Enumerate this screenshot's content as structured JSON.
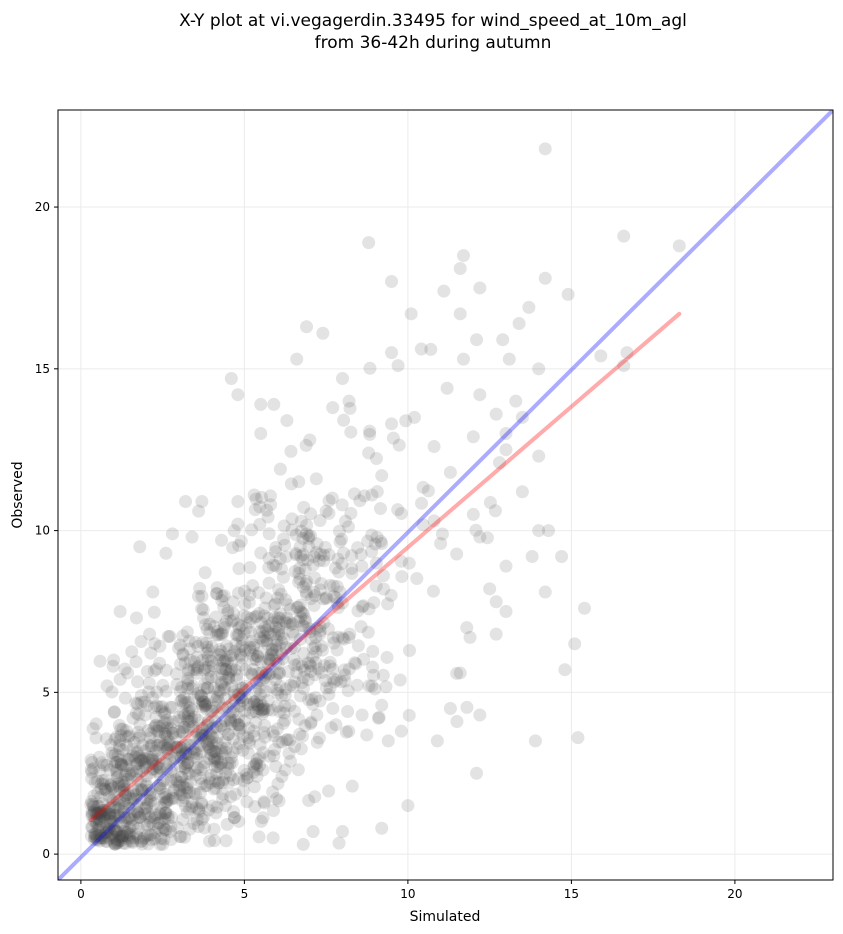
{
  "chart_data": {
    "type": "scatter",
    "title_line1": "X-Y plot at vi.vegagerdin.33495 for wind_speed_at_10m_agl",
    "title_line2": "from 36-42h during autumn",
    "xlabel": "Simulated",
    "ylabel": "Observed",
    "xlim": [
      -0.7,
      23
    ],
    "ylim": [
      -0.8,
      23
    ],
    "xticks": [
      0,
      5,
      10,
      15,
      20
    ],
    "yticks": [
      0,
      5,
      10,
      15,
      20
    ],
    "grid": true,
    "point_color": "#404040",
    "point_opacity": 0.15,
    "identity_line": {
      "color": "#0000ff",
      "opacity": 0.33,
      "from": [
        -0.7,
        -0.8
      ],
      "to": [
        23,
        23
      ]
    },
    "fit_line": {
      "color": "#ff0000",
      "opacity": 0.33,
      "from": [
        0.3,
        1.05
      ],
      "to": [
        18.3,
        16.7
      ]
    },
    "cloud": {
      "seed": 33495,
      "count": 1400,
      "slope": 0.87,
      "intercept": 0.8,
      "noise": 2.2,
      "x_mode": 4.0,
      "x_spread": 2.3
    },
    "points": [
      [
        14.2,
        21.8
      ],
      [
        8.8,
        18.9
      ],
      [
        16.6,
        19.1
      ],
      [
        18.3,
        18.8
      ],
      [
        11.7,
        18.5
      ],
      [
        11.6,
        18.1
      ],
      [
        9.5,
        17.7
      ],
      [
        14.2,
        17.8
      ],
      [
        14.9,
        17.3
      ],
      [
        12.2,
        17.5
      ],
      [
        11.1,
        17.4
      ],
      [
        13.7,
        16.9
      ],
      [
        10.1,
        16.7
      ],
      [
        11.6,
        16.7
      ],
      [
        6.9,
        16.3
      ],
      [
        7.4,
        16.1
      ],
      [
        13.4,
        16.4
      ],
      [
        12.9,
        15.9
      ],
      [
        12.1,
        15.9
      ],
      [
        10.7,
        15.6
      ],
      [
        9.5,
        15.5
      ],
      [
        13.1,
        15.3
      ],
      [
        15.9,
        15.4
      ],
      [
        16.7,
        15.5
      ],
      [
        16.6,
        15.1
      ],
      [
        6.6,
        15.3
      ],
      [
        11.7,
        15.3
      ],
      [
        14.0,
        15.0
      ],
      [
        9.7,
        15.1
      ],
      [
        8.0,
        14.7
      ],
      [
        4.6,
        14.7
      ],
      [
        11.2,
        14.4
      ],
      [
        12.2,
        14.2
      ],
      [
        4.8,
        14.2
      ],
      [
        8.2,
        14.0
      ],
      [
        13.3,
        14.0
      ],
      [
        5.5,
        13.9
      ],
      [
        5.9,
        13.9
      ],
      [
        12.7,
        13.6
      ],
      [
        7.7,
        13.8
      ],
      [
        6.3,
        13.4
      ],
      [
        10.2,
        13.5
      ],
      [
        9.5,
        13.3
      ],
      [
        13.5,
        13.5
      ],
      [
        13.0,
        13.0
      ],
      [
        5.5,
        13.0
      ],
      [
        12.0,
        12.9
      ],
      [
        10.8,
        12.6
      ],
      [
        7.0,
        12.8
      ],
      [
        8.8,
        12.4
      ],
      [
        14.0,
        12.3
      ],
      [
        12.8,
        12.1
      ],
      [
        13.0,
        12.5
      ],
      [
        9.2,
        11.7
      ],
      [
        11.3,
        11.8
      ],
      [
        7.2,
        11.6
      ],
      [
        8.9,
        11.1
      ],
      [
        6.1,
        11.9
      ],
      [
        5.3,
        11.1
      ],
      [
        3.2,
        10.9
      ],
      [
        3.7,
        10.9
      ],
      [
        4.8,
        10.9
      ],
      [
        5.8,
        10.8
      ],
      [
        7.5,
        10.6
      ],
      [
        3.6,
        10.6
      ],
      [
        13.5,
        11.2
      ],
      [
        12.0,
        10.5
      ],
      [
        10.8,
        10.3
      ],
      [
        4.8,
        10.2
      ],
      [
        14.0,
        10.0
      ],
      [
        14.3,
        10.0
      ],
      [
        12.2,
        9.8
      ],
      [
        6.9,
        9.9
      ],
      [
        9.2,
        9.6
      ],
      [
        11.0,
        9.6
      ],
      [
        13.8,
        9.2
      ],
      [
        14.7,
        9.2
      ],
      [
        1.8,
        9.5
      ],
      [
        2.8,
        9.9
      ],
      [
        3.4,
        9.8
      ],
      [
        2.6,
        9.3
      ],
      [
        4.3,
        9.7
      ],
      [
        13.0,
        8.9
      ],
      [
        12.5,
        8.2
      ],
      [
        14.2,
        8.1
      ],
      [
        3.8,
        8.7
      ],
      [
        2.2,
        8.1
      ],
      [
        1.2,
        7.5
      ],
      [
        1.7,
        7.3
      ],
      [
        2.1,
        6.8
      ],
      [
        1.0,
        6.0
      ],
      [
        0.8,
        5.2
      ],
      [
        1.2,
        5.4
      ],
      [
        11.8,
        7.0
      ],
      [
        12.7,
        7.8
      ],
      [
        13.0,
        7.5
      ],
      [
        15.4,
        7.6
      ],
      [
        11.9,
        6.7
      ],
      [
        12.7,
        6.8
      ],
      [
        11.6,
        5.6
      ],
      [
        15.1,
        6.5
      ],
      [
        14.8,
        5.7
      ],
      [
        11.3,
        4.5
      ],
      [
        11.5,
        4.1
      ],
      [
        12.2,
        4.3
      ],
      [
        10.9,
        3.5
      ],
      [
        13.9,
        3.5
      ],
      [
        15.2,
        3.6
      ],
      [
        12.1,
        2.5
      ],
      [
        10.0,
        1.5
      ],
      [
        9.2,
        0.8
      ],
      [
        7.1,
        0.7
      ],
      [
        6.8,
        0.3
      ],
      [
        0.4,
        1.8
      ],
      [
        0.5,
        1.1
      ],
      [
        0.7,
        0.5
      ],
      [
        1.5,
        0.4
      ],
      [
        2.5,
        0.3
      ],
      [
        8.3,
        2.1
      ],
      [
        9.4,
        3.5
      ],
      [
        9.8,
        3.8
      ],
      [
        8.0,
        0.7
      ],
      [
        7.8,
        4.0
      ],
      [
        8.6,
        4.3
      ],
      [
        9.2,
        4.6
      ],
      [
        9.1,
        4.2
      ]
    ]
  }
}
